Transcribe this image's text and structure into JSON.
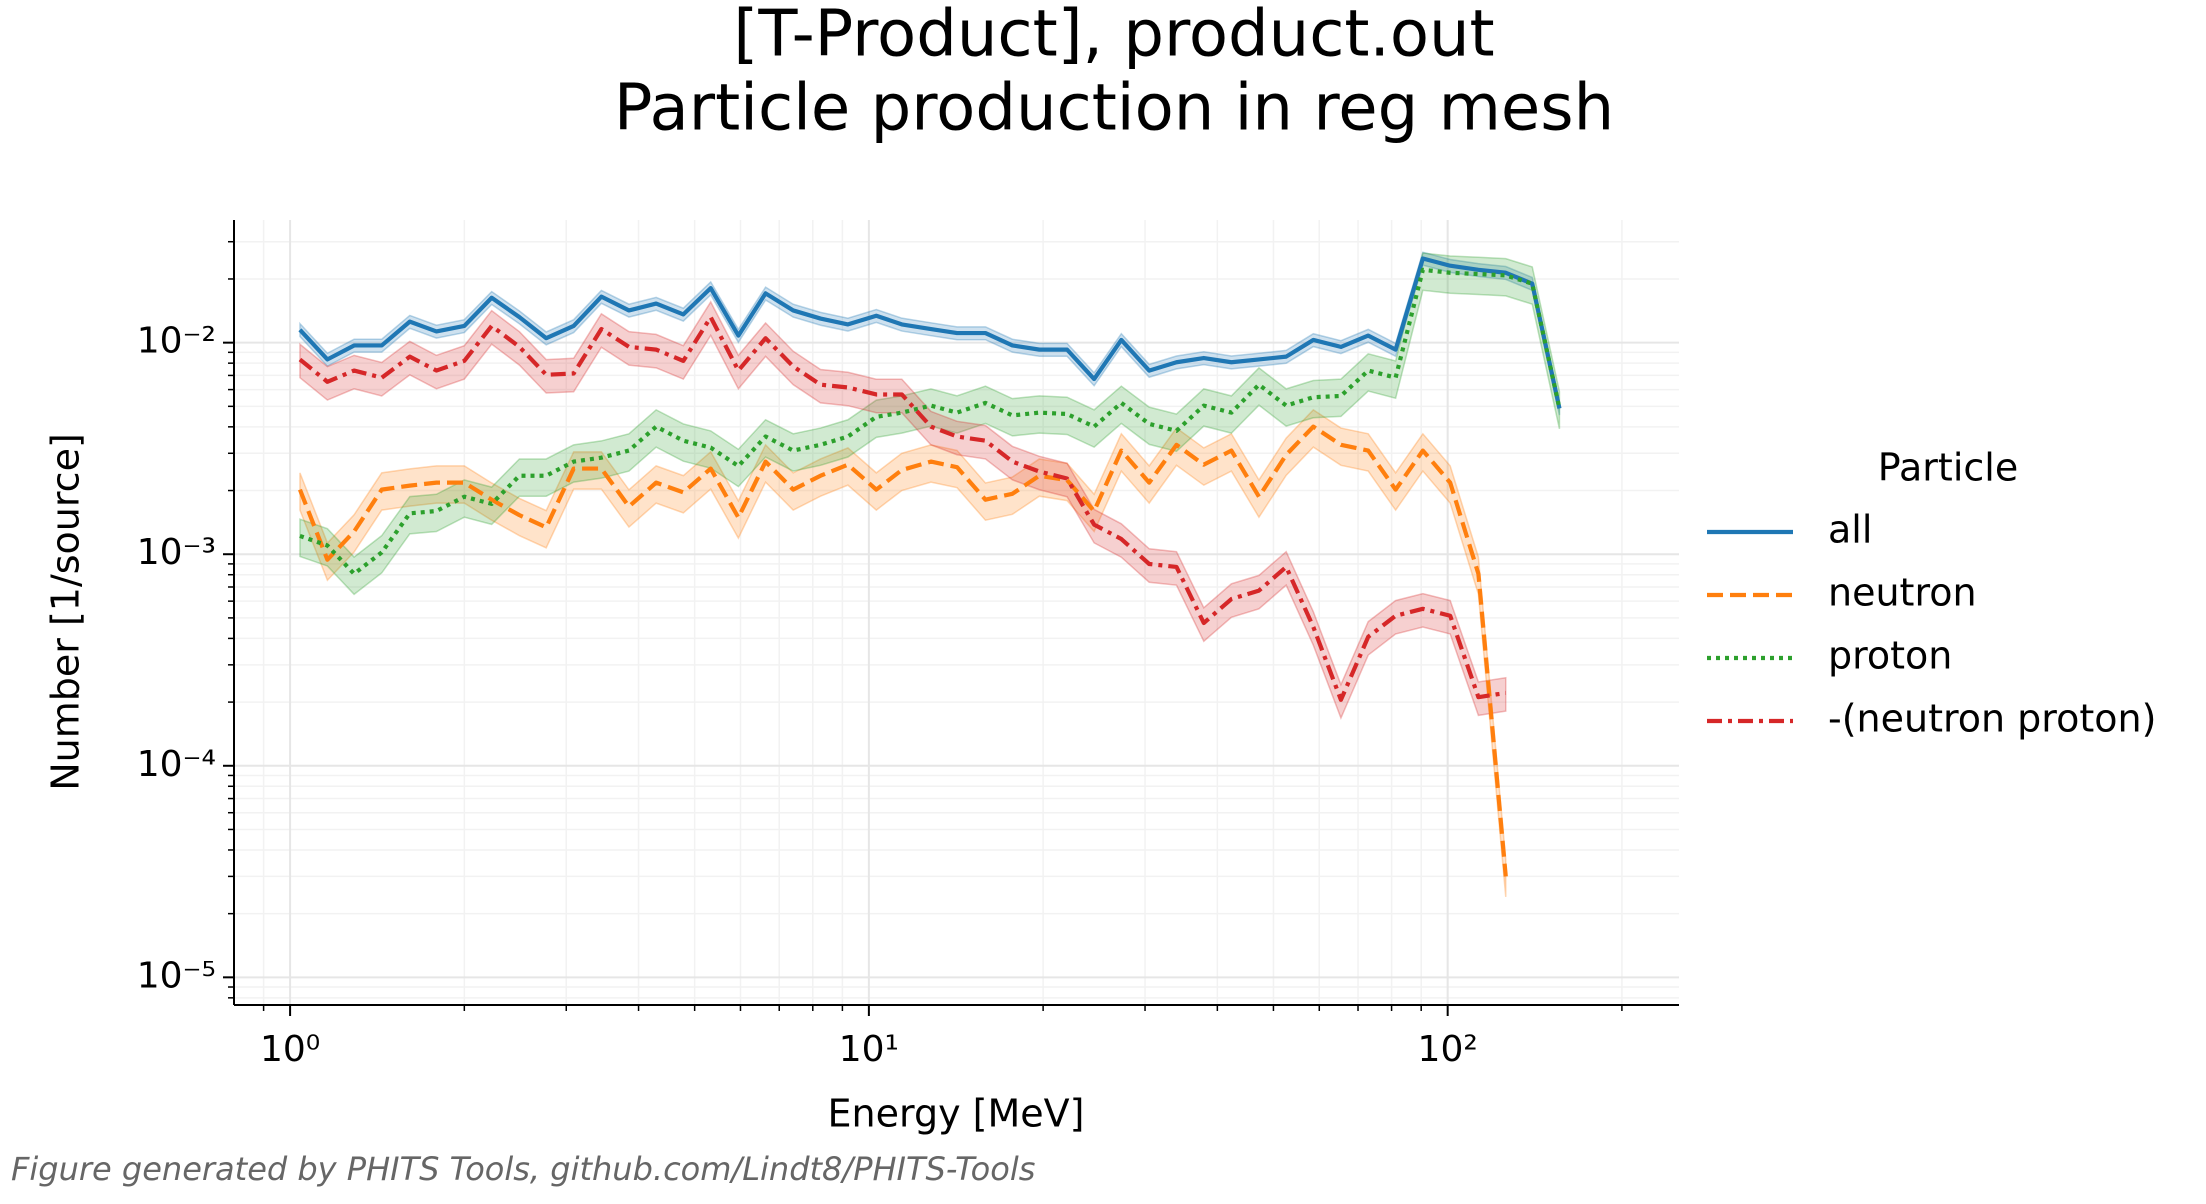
{
  "chart_data": {
    "type": "line",
    "title": "[T-Product], product.out",
    "subtitle": "Particle production in reg mesh",
    "x_label": "Energy [MeV]",
    "y_label": "Number [1/source]",
    "footer": "Figure generated by PHITS Tools, github.com/Lindt8/PHITS-Tools",
    "xscale": "log",
    "yscale": "log",
    "grid": true,
    "legend_title": "Particle",
    "legend_loc": "outside-right",
    "xlim": [
      0.8,
      251
    ],
    "ylim": [
      7.4e-06,
      0.038
    ],
    "xticks": [
      {
        "value": 1,
        "label": "10⁰"
      },
      {
        "value": 10,
        "label": "10¹"
      },
      {
        "value": 100,
        "label": "10²"
      }
    ],
    "yticks": [
      {
        "value": 1e-05,
        "label": "10⁻⁵"
      },
      {
        "value": 0.0001,
        "label": "10⁻⁴"
      },
      {
        "value": 0.001,
        "label": "10⁻³"
      },
      {
        "value": 0.01,
        "label": "10⁻²"
      }
    ],
    "x": [
      1.04,
      1.16,
      1.29,
      1.44,
      1.61,
      1.79,
      2.0,
      2.23,
      2.49,
      2.77,
      3.09,
      3.45,
      3.85,
      4.29,
      4.78,
      5.33,
      5.95,
      6.63,
      7.4,
      8.25,
      9.2,
      10.3,
      11.4,
      12.8,
      14.2,
      15.9,
      17.7,
      19.7,
      22.0,
      24.5,
      27.3,
      30.5,
      34.0,
      37.9,
      42.3,
      47.2,
      52.6,
      58.6,
      65.4,
      72.9,
      81.3,
      90.6,
      101,
      113,
      126,
      140,
      156
    ],
    "series": [
      {
        "name": "all",
        "color": "#1f77b4",
        "linestyle": "solid",
        "error": 0.07,
        "values": [
          0.0115,
          0.00833,
          0.0097,
          0.0097,
          0.01257,
          0.0113,
          0.012,
          0.0163,
          0.0132,
          0.0105,
          0.012,
          0.0165,
          0.0142,
          0.0153,
          0.0136,
          0.0181,
          0.0108,
          0.0171,
          0.0142,
          0.013,
          0.0122,
          0.0134,
          0.0122,
          0.0116,
          0.0111,
          0.0111,
          0.0097,
          0.00927,
          0.00927,
          0.00673,
          0.0103,
          0.00738,
          0.00808,
          0.00846,
          0.00808,
          0.00833,
          0.00859,
          0.0103,
          0.00955,
          0.0108,
          0.00927,
          0.025,
          0.0231,
          0.0221,
          0.0214,
          0.019,
          0.00489
        ]
      },
      {
        "name": "neutron",
        "color": "#ff7f0e",
        "linestyle": "dashed",
        "error": 0.2,
        "values": [
          0.00202,
          0.000942,
          0.00128,
          0.00202,
          0.00211,
          0.00218,
          0.00218,
          0.00181,
          0.00153,
          0.00134,
          0.00254,
          0.00254,
          0.00168,
          0.00218,
          0.00196,
          0.00254,
          0.00149,
          0.00274,
          0.00202,
          0.00235,
          0.00265,
          0.00202,
          0.0025,
          0.00274,
          0.00258,
          0.00181,
          0.00193,
          0.00235,
          0.00224,
          0.0016,
          0.00309,
          0.00218,
          0.00329,
          0.00265,
          0.00309,
          0.00187,
          0.00295,
          0.00401,
          0.00329,
          0.00309,
          0.00202,
          0.00309,
          0.00218,
          0.000808,
          3e-05,
          null,
          null
        ]
      },
      {
        "name": "proton",
        "color": "#2ca02c",
        "linestyle": "dotted",
        "error": 0.2,
        "values": [
          0.00122,
          0.0011,
          0.000808,
          0.00102,
          0.00156,
          0.0016,
          0.00187,
          0.00173,
          0.00235,
          0.00235,
          0.00274,
          0.00286,
          0.00309,
          0.00401,
          0.00344,
          0.00319,
          0.00261,
          0.0036,
          0.00309,
          0.00329,
          0.0036,
          0.00446,
          0.00467,
          0.00504,
          0.00467,
          0.00519,
          0.00453,
          0.00467,
          0.0046,
          0.00401,
          0.00519,
          0.00413,
          0.00383,
          0.00504,
          0.00467,
          0.00633,
          0.00504,
          0.00552,
          0.0056,
          0.00738,
          0.00683,
          0.0221,
          0.0214,
          0.0211,
          0.0208,
          0.019,
          0.00489
        ]
      },
      {
        "name": "-(neutron proton)",
        "color": "#d62728",
        "linestyle": "dashdot",
        "error": 0.18,
        "values": [
          0.00833,
          0.00653,
          0.00738,
          0.00683,
          0.00859,
          0.00738,
          0.0082,
          0.012,
          0.00955,
          0.00705,
          0.00715,
          0.0116,
          0.00955,
          0.00927,
          0.0082,
          0.0132,
          0.00738,
          0.0105,
          0.00772,
          0.00633,
          0.00614,
          0.00569,
          0.00569,
          0.00401,
          0.0036,
          0.00344,
          0.00274,
          0.00246,
          0.00228,
          0.00138,
          0.00118,
          0.000899,
          0.000871,
          0.000473,
          0.000614,
          0.000673,
          0.000871,
          0.000453,
          0.000205,
          0.000407,
          0.000512,
          0.000552,
          0.000512,
          0.000211,
          0.000221,
          null,
          null
        ]
      }
    ]
  }
}
